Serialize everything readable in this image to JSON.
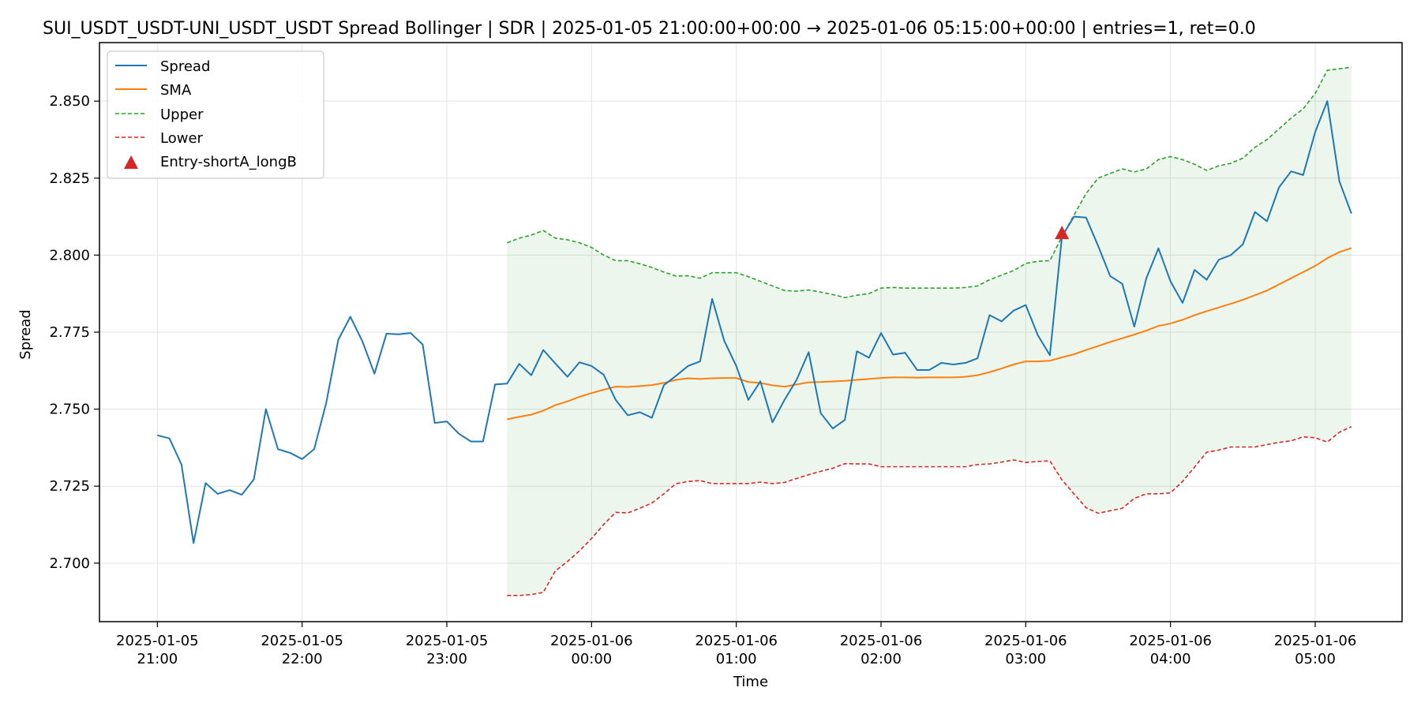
{
  "chart_data": {
    "type": "line",
    "title": "SUI_USDT_USDT-UNI_USDT_USDT Spread Bollinger  | SDR | 2025-01-05 21:00:00+00:00 → 2025-01-06 05:15:00+00:00 | entries=1, ret=0.0",
    "xlabel": "Time",
    "ylabel": "Spread",
    "grid": true,
    "legend_position": "top-left",
    "colors": {
      "spread": "#1f77b4",
      "sma": "#ff7f0e",
      "upper": "#2ca02c",
      "lower": "#d62728",
      "band_fill": "#2ca02c",
      "entry": "#d62728"
    },
    "x_range_minutes": [
      -24,
      516
    ],
    "ylim": [
      2.681,
      2.869
    ],
    "x_ticks": [
      {
        "minute": 0,
        "line1": "2025-01-05",
        "line2": "21:00"
      },
      {
        "minute": 60,
        "line1": "2025-01-05",
        "line2": "22:00"
      },
      {
        "minute": 120,
        "line1": "2025-01-05",
        "line2": "23:00"
      },
      {
        "minute": 180,
        "line1": "2025-01-06",
        "line2": "00:00"
      },
      {
        "minute": 240,
        "line1": "2025-01-06",
        "line2": "01:00"
      },
      {
        "minute": 300,
        "line1": "2025-01-06",
        "line2": "02:00"
      },
      {
        "minute": 360,
        "line1": "2025-01-06",
        "line2": "03:00"
      },
      {
        "minute": 420,
        "line1": "2025-01-06",
        "line2": "04:00"
      },
      {
        "minute": 480,
        "line1": "2025-01-06",
        "line2": "05:00"
      }
    ],
    "y_ticks": [
      "2.700",
      "2.725",
      "2.750",
      "2.775",
      "2.800",
      "2.825",
      "2.850"
    ],
    "time_start": "2025-01-05 21:00",
    "step_minutes": 5,
    "spread": [
      2.7415,
      2.7405,
      2.732,
      2.7065,
      2.726,
      2.7225,
      2.7237,
      2.7222,
      2.7272,
      2.75,
      2.737,
      2.7358,
      2.7338,
      2.737,
      2.752,
      2.7725,
      2.78,
      2.772,
      2.7615,
      2.7745,
      2.7743,
      2.7747,
      2.771,
      2.7455,
      2.746,
      2.742,
      2.7395,
      2.7395,
      2.758,
      2.7583,
      2.7647,
      2.761,
      2.7692,
      2.7648,
      2.7605,
      2.7652,
      2.764,
      2.7612,
      2.753,
      2.748,
      2.749,
      2.7472,
      2.7578,
      2.7608,
      2.764,
      2.7655,
      2.7858,
      2.7722,
      2.764,
      2.753,
      2.759,
      2.7457,
      2.753,
      2.7595,
      2.7685,
      2.7487,
      2.7437,
      2.7465,
      2.7688,
      2.7667,
      2.7747,
      2.7677,
      2.7683,
      2.7627,
      2.7627,
      2.765,
      2.7645,
      2.765,
      2.7665,
      2.7805,
      2.7785,
      2.782,
      2.7838,
      2.774,
      2.7675,
      2.806,
      2.8125,
      2.8122,
      2.803,
      2.7932,
      2.7907,
      2.7768,
      2.7925,
      2.8022,
      2.7915,
      2.7845,
      2.7952,
      2.792,
      2.7985,
      2.8,
      2.8035,
      2.814,
      2.811,
      2.822,
      2.8272,
      2.826,
      2.84,
      2.85,
      2.824,
      2.8135
    ],
    "sma": [
      null,
      null,
      null,
      null,
      null,
      null,
      null,
      null,
      null,
      null,
      null,
      null,
      null,
      null,
      null,
      null,
      null,
      null,
      null,
      null,
      null,
      null,
      null,
      null,
      null,
      null,
      null,
      null,
      null,
      2.7467,
      2.7475,
      2.7482,
      2.7495,
      2.7513,
      2.7525,
      2.754,
      2.7552,
      2.7563,
      2.7573,
      2.7572,
      2.7575,
      2.7578,
      2.7585,
      2.7595,
      2.76,
      2.7598,
      2.76,
      2.7601,
      2.7601,
      2.7588,
      2.7585,
      2.7577,
      2.7573,
      2.758,
      2.7587,
      2.7588,
      2.759,
      2.7592,
      2.7595,
      2.7598,
      2.7601,
      2.7603,
      2.7603,
      2.7602,
      2.7603,
      2.7603,
      2.7603,
      2.7605,
      2.761,
      2.762,
      2.7632,
      2.7645,
      2.7655,
      2.7655,
      2.7657,
      2.7668,
      2.7678,
      2.7692,
      2.7705,
      2.7718,
      2.773,
      2.7742,
      2.7755,
      2.777,
      2.7778,
      2.779,
      2.7805,
      2.7818,
      2.783,
      2.7842,
      2.7855,
      2.787,
      2.7885,
      2.7905,
      2.7925,
      2.7945,
      2.7965,
      2.799,
      2.801,
      2.8023
    ],
    "upper": [
      null,
      null,
      null,
      null,
      null,
      null,
      null,
      null,
      null,
      null,
      null,
      null,
      null,
      null,
      null,
      null,
      null,
      null,
      null,
      null,
      null,
      null,
      null,
      null,
      null,
      null,
      null,
      null,
      null,
      2.804,
      2.8055,
      2.8065,
      2.808,
      2.8055,
      2.805,
      2.804,
      2.8025,
      2.8,
      2.7982,
      2.7982,
      2.7972,
      2.796,
      2.7945,
      2.7932,
      2.7933,
      2.7925,
      2.7943,
      2.7943,
      2.7943,
      2.793,
      2.7915,
      2.79,
      2.7885,
      2.7883,
      2.7887,
      2.788,
      2.7872,
      2.7862,
      2.787,
      2.7875,
      2.7893,
      2.7895,
      2.7893,
      2.7893,
      2.7893,
      2.7893,
      2.7893,
      2.7895,
      2.79,
      2.792,
      2.7935,
      2.795,
      2.7973,
      2.798,
      2.7982,
      2.806,
      2.813,
      2.82,
      2.825,
      2.8265,
      2.828,
      2.827,
      2.828,
      2.831,
      2.832,
      2.831,
      2.8295,
      2.8275,
      2.829,
      2.8298,
      2.8315,
      2.835,
      2.8375,
      2.841,
      2.8445,
      2.8475,
      2.8525,
      2.86,
      2.8605,
      2.861
    ],
    "lower": [
      null,
      null,
      null,
      null,
      null,
      null,
      null,
      null,
      null,
      null,
      null,
      null,
      null,
      null,
      null,
      null,
      null,
      null,
      null,
      null,
      null,
      null,
      null,
      null,
      null,
      null,
      null,
      null,
      null,
      2.6895,
      2.6895,
      2.6898,
      2.6905,
      2.6975,
      2.7005,
      2.704,
      2.708,
      2.7125,
      2.7165,
      2.7163,
      2.7178,
      2.7195,
      2.7225,
      2.7258,
      2.7265,
      2.7268,
      2.7258,
      2.7258,
      2.7258,
      2.7258,
      2.7263,
      2.7258,
      2.7262,
      2.7275,
      2.7287,
      2.7298,
      2.7308,
      2.7323,
      2.7322,
      2.7322,
      2.7313,
      2.7313,
      2.7313,
      2.7313,
      2.7313,
      2.7313,
      2.7313,
      2.7313,
      2.732,
      2.7322,
      2.7328,
      2.7335,
      2.7327,
      2.733,
      2.7332,
      2.727,
      2.7225,
      2.718,
      2.7162,
      2.717,
      2.7178,
      2.721,
      2.7225,
      2.7225,
      2.7228,
      2.7265,
      2.7312,
      2.736,
      2.7367,
      2.7377,
      2.7377,
      2.7377,
      2.7385,
      2.7392,
      2.7397,
      2.741,
      2.7407,
      2.7393,
      2.7425,
      2.7443
    ],
    "entries": [
      {
        "label": "Entry-shortA_longB",
        "index": 75,
        "value": 2.807
      }
    ],
    "legend": [
      "Spread",
      "SMA",
      "Upper",
      "Lower",
      "Entry-shortA_longB"
    ]
  }
}
